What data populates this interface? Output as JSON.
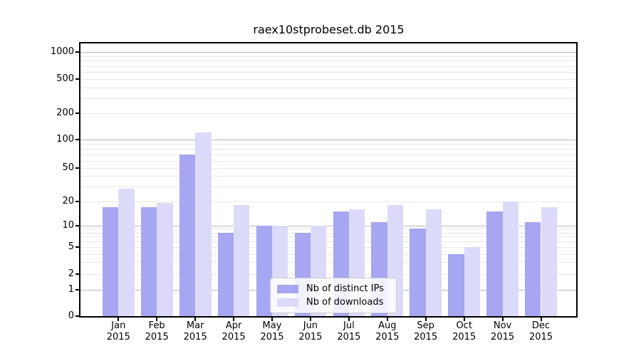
{
  "figure": {
    "background": "#ffffff"
  },
  "chart_data": {
    "type": "bar",
    "title": "raex10stprobeset.db 2015",
    "categories": [
      "Jan",
      "Feb",
      "Mar",
      "Apr",
      "May",
      "Jun",
      "Jul",
      "Aug",
      "Sep",
      "Oct",
      "Nov",
      "Dec"
    ],
    "category_year": "2015",
    "series": [
      {
        "name": "Nb of distinct IPs",
        "color": "#a6a6f2",
        "values": [
          17,
          17,
          70,
          8,
          10,
          8,
          15,
          11,
          9,
          4,
          15,
          11
        ]
      },
      {
        "name": "Nb of downloads",
        "color": "#dbdbf9",
        "values": [
          28,
          19,
          120,
          18,
          10,
          10,
          16,
          18,
          16,
          5,
          20,
          17
        ]
      }
    ],
    "xlabel": "",
    "ylabel": "",
    "y_ticks": [
      0,
      1,
      2,
      5,
      10,
      20,
      50,
      100,
      200,
      500,
      1000
    ],
    "y_scale": "quasi-log (1-2-5 ticks, linear 0-1)",
    "ylim": [
      0,
      1300
    ],
    "grid": "horizontal major+minor",
    "legend": {
      "position": "bottom-center",
      "entries": [
        "Nb of distinct IPs",
        "Nb of downloads"
      ]
    },
    "colors": {
      "major_grid": "#b9b9b9",
      "minor_grid": "#e7e7e7",
      "spine": "#000000",
      "text": "#000000",
      "background": "#ffffff"
    }
  }
}
